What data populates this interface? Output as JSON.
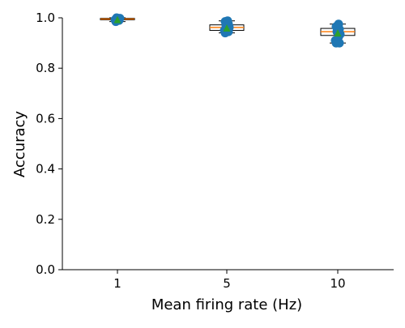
{
  "chart_data": {
    "type": "box",
    "title": "",
    "xlabel": "Mean firing rate (Hz)",
    "ylabel": "Accuracy",
    "categories": [
      "1",
      "5",
      "10"
    ],
    "ylim": [
      0.0,
      1.0
    ],
    "yticks": [
      "0.0",
      "0.2",
      "0.4",
      "0.6",
      "0.8",
      "1.0"
    ],
    "grid": false,
    "boxes": [
      {
        "category": "1",
        "whisker_low": 0.985,
        "q1": 0.992,
        "median": 0.995,
        "q3": 0.998,
        "whisker_high": 1.0,
        "mean": 0.993
      },
      {
        "category": "5",
        "whisker_low": 0.94,
        "q1": 0.95,
        "median": 0.962,
        "q3": 0.972,
        "whisker_high": 0.988,
        "mean": 0.96
      },
      {
        "category": "10",
        "whisker_low": 0.9,
        "q1": 0.93,
        "median": 0.945,
        "q3": 0.958,
        "whisker_high": 0.975,
        "mean": 0.94
      }
    ],
    "points": [
      {
        "category": "1",
        "values": [
          0.985,
          0.99,
          0.992,
          0.995,
          0.998,
          1.0
        ]
      },
      {
        "category": "5",
        "values": [
          0.94,
          0.945,
          0.95,
          0.96,
          0.962,
          0.97,
          0.975,
          0.985,
          0.988
        ]
      },
      {
        "category": "10",
        "values": [
          0.9,
          0.9,
          0.91,
          0.925,
          0.935,
          0.945,
          0.955,
          0.965,
          0.975
        ]
      }
    ],
    "colors": {
      "box_edge": "#000000",
      "box_fill": "#ffffff",
      "median": "#ff7f0e",
      "mean_marker": "#2ca02c",
      "points": "#1f77b4"
    }
  }
}
